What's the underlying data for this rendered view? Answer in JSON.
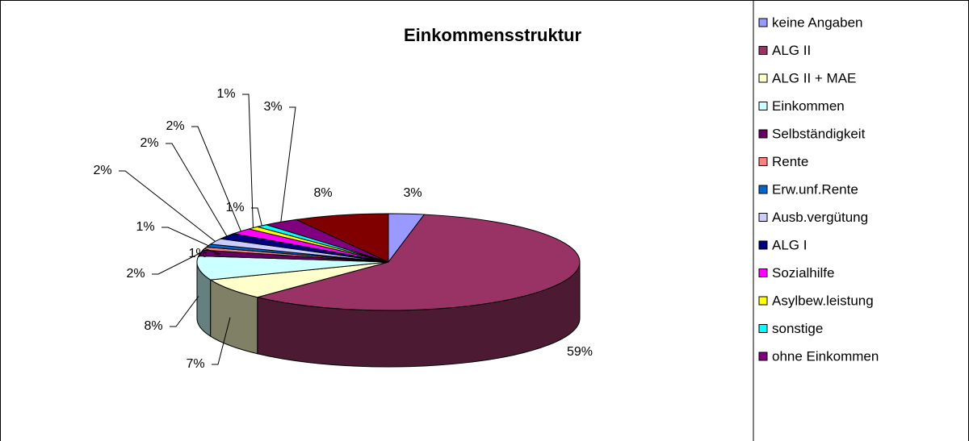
{
  "chart_data": {
    "type": "pie3d",
    "title": "Einkommensstruktur",
    "categories": [
      "keine Angaben",
      "ALG II",
      "ALG II + MAE",
      "Einkommen",
      "Selbständigkeit",
      "Rente",
      "Erw.unf.Rente",
      "Ausb.vergütung",
      "ALG I",
      "Sozialhilfe",
      "Asylbew.leistung",
      "sonstige",
      "ohne Einkommen",
      null
    ],
    "values": [
      3,
      59,
      7,
      8,
      2,
      1,
      1,
      2,
      2,
      2,
      1,
      1,
      3,
      8
    ],
    "value_labels": [
      "3%",
      "59%",
      "7%",
      "8%",
      "2%",
      "1%",
      "1%",
      "2%",
      "2%",
      "2%",
      "1%",
      "1%",
      "3%",
      "8%"
    ],
    "colors": [
      "#9999ff",
      "#993366",
      "#ffffcc",
      "#ccffff",
      "#660066",
      "#ff8080",
      "#0066cc",
      "#ccccff",
      "#000080",
      "#ff00ff",
      "#ffff00",
      "#00ffff",
      "#800080",
      "#800000"
    ],
    "legend": "right"
  }
}
